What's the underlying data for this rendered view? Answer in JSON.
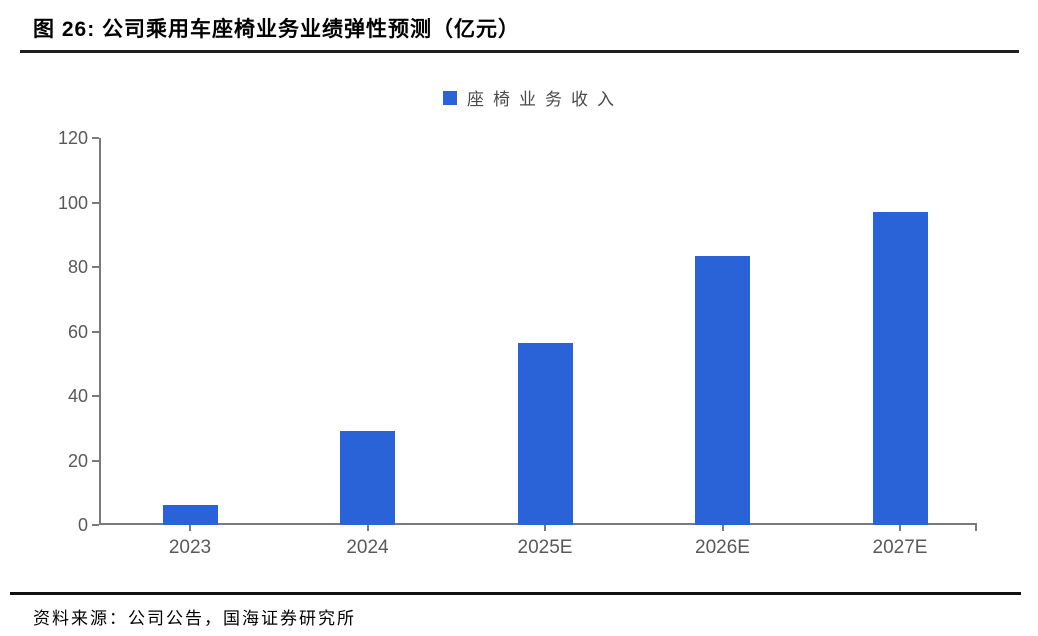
{
  "page": {
    "title": "图 26:  公司乘用车座椅业务业绩弹性预测（亿元）",
    "source": "资料来源：公司公告，国海证券研究所"
  },
  "legend": {
    "items": [
      {
        "label": "座椅业务收入",
        "marker": "square",
        "color": "#2A62D8"
      }
    ]
  },
  "chart_data": {
    "type": "bar",
    "title": "公司乘用车座椅业务业绩弹性预测（亿元）",
    "categories": [
      "2023",
      "2024",
      "2025E",
      "2026E",
      "2027E"
    ],
    "series": [
      {
        "name": "座椅业务收入",
        "values": [
          6.3,
          29,
          56.5,
          83.3,
          97
        ]
      }
    ],
    "xlabel": "",
    "ylabel": "",
    "ylim": [
      0,
      120
    ],
    "yticks": [
      0,
      20,
      40,
      60,
      80,
      100,
      120
    ],
    "grid": false,
    "legend_position": "top-center",
    "colors": {
      "bar": "#2A62D8",
      "axis": "#7A7A7A",
      "tick_label": "#595959"
    }
  }
}
